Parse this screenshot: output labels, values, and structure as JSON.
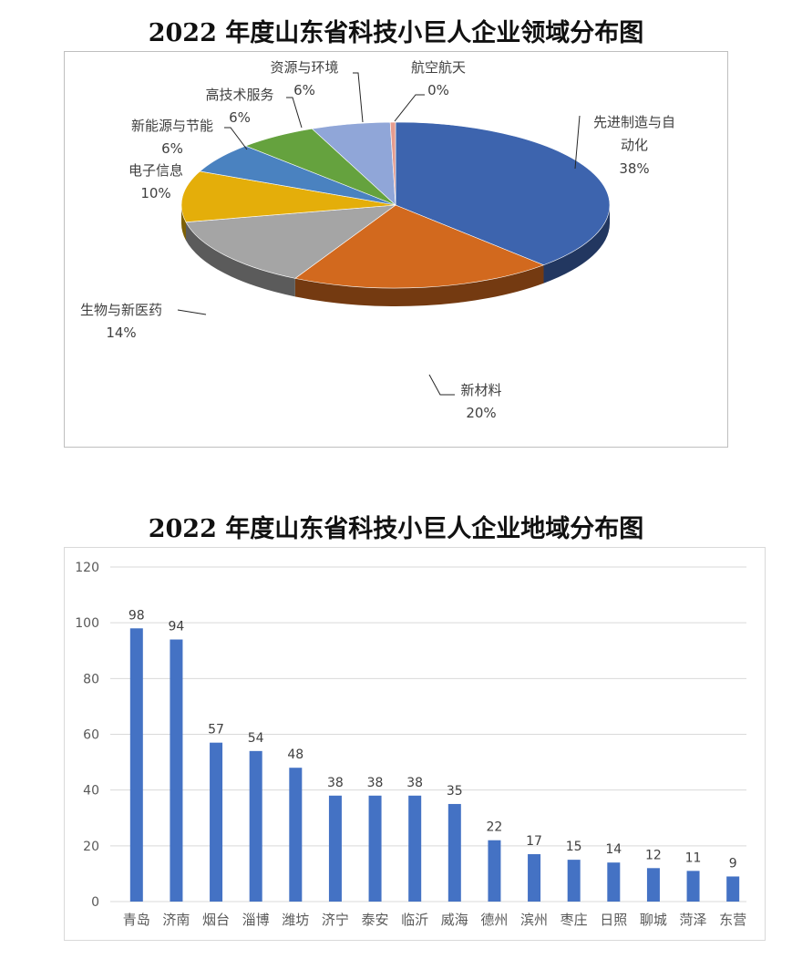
{
  "titles": {
    "pie": "2022 年度山东省科技小巨人企业领域分布图",
    "bar": "2022 年度山东省科技小巨人企业地域分布图"
  },
  "chart_data": [
    {
      "type": "pie",
      "title": "2022 年度山东省科技小巨人企业领域分布图",
      "style": "3d-pie",
      "categories": [
        "先进制造与自动化",
        "新材料",
        "生物与新医药",
        "电子信息",
        "新能源与节能",
        "高技术服务",
        "资源与环境",
        "航空航天"
      ],
      "values": [
        38,
        20,
        14,
        10,
        6,
        6,
        6,
        0
      ],
      "labels": [
        "38%",
        "20%",
        "14%",
        "10%",
        "6%",
        "6%",
        "6%",
        "0%"
      ],
      "colors": [
        "#3D64AE",
        "#D2691E",
        "#A5A5A5",
        "#E4AE0A",
        "#4A82C0",
        "#65A23E",
        "#90A6D8",
        "#E59C8F"
      ]
    },
    {
      "type": "bar",
      "title": "2022 年度山东省科技小巨人企业地域分布图",
      "categories": [
        "青岛",
        "济南",
        "烟台",
        "淄博",
        "潍坊",
        "济宁",
        "泰安",
        "临沂",
        "威海",
        "德州",
        "滨州",
        "枣庄",
        "日照",
        "聊城",
        "菏泽",
        "东营"
      ],
      "values": [
        98,
        94,
        57,
        54,
        48,
        38,
        38,
        38,
        35,
        22,
        17,
        15,
        14,
        12,
        11,
        9
      ],
      "xlabel": "",
      "ylabel": "",
      "ylim": [
        0,
        120
      ],
      "yticks": [
        0,
        20,
        40,
        60,
        80,
        100,
        120
      ],
      "grid": true,
      "bar_color": "#4472C4"
    }
  ]
}
